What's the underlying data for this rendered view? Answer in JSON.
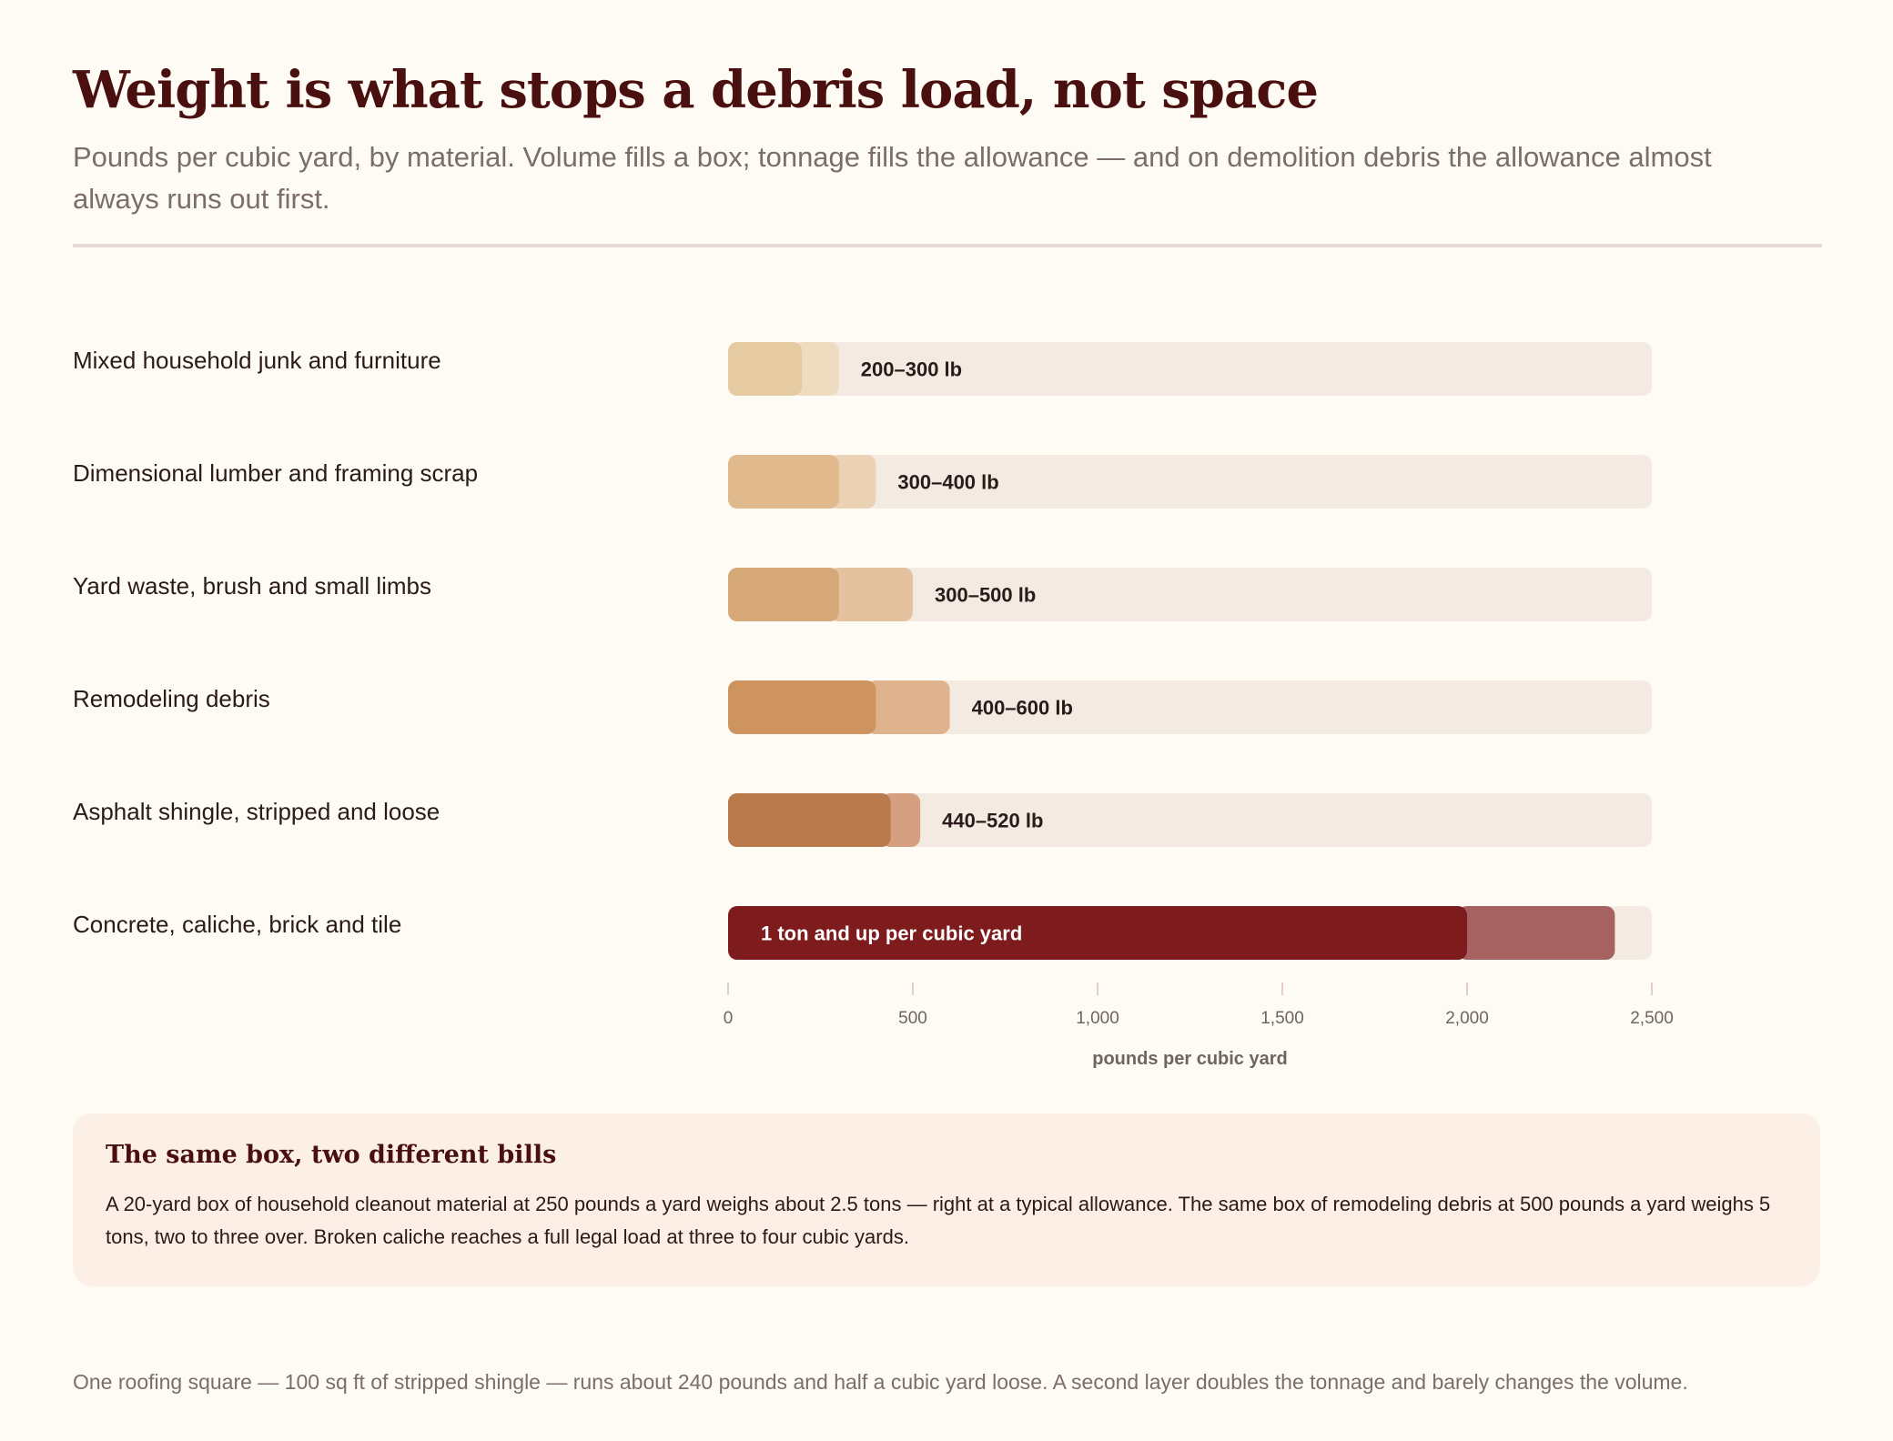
{
  "title": "Weight is what stops a debris load, not space",
  "subtitle": "Pounds per cubic yard, by material. Volume fills a box; tonnage fills the allowance — and on demolition debris the allowance almost always runs out first.",
  "chart_data": {
    "type": "bar",
    "orientation": "horizontal",
    "encoding": "range",
    "categories": [
      "Mixed household junk and furniture",
      "Dimensional lumber and framing scrap",
      "Yard waste, brush and small limbs",
      "Remodeling debris",
      "Asphalt shingle, stripped and loose",
      "Concrete, caliche, brick and tile"
    ],
    "ranges": [
      {
        "low": 200,
        "high": 300,
        "label": "200–300 lb",
        "color": "#e6caa1",
        "range_color": "#efdcc0"
      },
      {
        "low": 300,
        "high": 400,
        "label": "300–400 lb",
        "color": "#e0b98d",
        "range_color": "#ebd2b5"
      },
      {
        "low": 300,
        "high": 500,
        "label": "300–500 lb",
        "color": "#d7a877",
        "range_color": "#e4c29f"
      },
      {
        "low": 400,
        "high": 600,
        "label": "400–600 lb",
        "color": "#cd9460",
        "range_color": "#dfb38d"
      },
      {
        "low": 440,
        "high": 520,
        "label": "440–520 lb",
        "color": "#bb7a4b",
        "range_color": "#d4a081"
      },
      {
        "low": 2000,
        "high": 2400,
        "label": "1 ton and up per cubic yard",
        "color": "#7e1b1c",
        "range_color": "#a56260",
        "label_inside": true
      }
    ],
    "xlabel": "pounds per cubic yard",
    "xlim": [
      0,
      2500
    ],
    "xticks": [
      0,
      500,
      1000,
      1500,
      2000,
      2500
    ],
    "xtick_labels": [
      "0",
      "500",
      "1,000",
      "1,500",
      "2,000",
      "2,500"
    ],
    "track_color": "#f3eae2",
    "grid": false
  },
  "note": {
    "title": "The same box, two different bills",
    "body": "A 20-yard box of household cleanout material at 250 pounds a yard weighs about 2.5 tons — right at a typical allowance. The same box of remodeling debris at 500 pounds a yard weighs 5 tons, two to three over. Broken caliche reaches a full legal load at three to four cubic yards."
  },
  "footer": "One roofing square — 100 sq ft of stripped shingle — runs about 240 pounds and half a cubic yard loose. A second layer doubles the tonnage and barely changes the volume."
}
